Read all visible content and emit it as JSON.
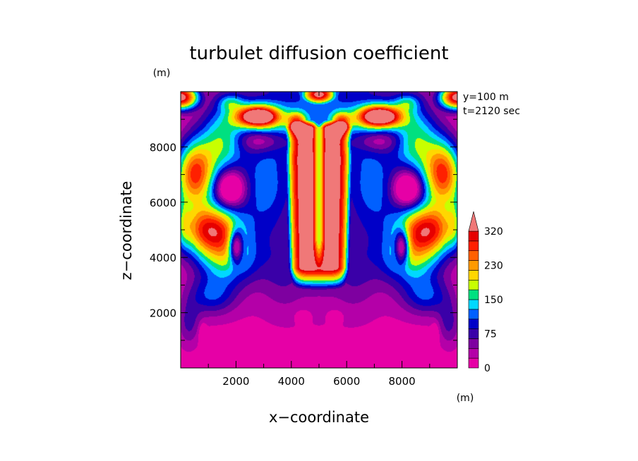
{
  "chart_data": {
    "type": "heatmap",
    "title": "turbulet diffusion coefficient",
    "xlabel": "x−coordinate",
    "ylabel": "z−coordinate",
    "x_unit": "(m)",
    "y_unit": "(m)",
    "xlim": [
      0,
      10000
    ],
    "ylim": [
      0,
      10000
    ],
    "x_ticks": [
      "2000",
      "4000",
      "6000",
      "8000"
    ],
    "y_ticks": [
      "2000",
      "4000",
      "6000",
      "8000"
    ],
    "annotations": [
      "y=100  m",
      "t=2120  sec"
    ],
    "colorbar": {
      "labels": [
        "0",
        "75",
        "150",
        "230",
        "320"
      ],
      "colors": [
        "#e600a6",
        "#b400a8",
        "#7e00a0",
        "#3a00a8",
        "#0000c8",
        "#0060ff",
        "#00d8ff",
        "#00e080",
        "#c8ff00",
        "#ffd700",
        "#ff9a00",
        "#ff6000",
        "#ff2000",
        "#e60000",
        "#f07878"
      ],
      "extend": "max"
    },
    "field_model": "left-right symmetric; high-value central plume (x 4000–6000, z 2800–9000) with thin low-value core at x=5000; warm lobes near the side walls at z≈5000 and z≈7000; red blobs near top at x≈2700 and x≈7300; salmon caps at the top corners and top centre; magenta low values in the lower half"
  }
}
